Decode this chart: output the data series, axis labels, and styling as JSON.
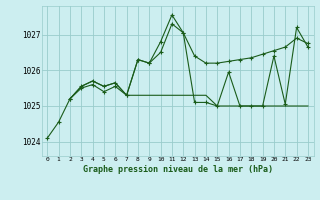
{
  "title": "Graphe pression niveau de la mer (hPa)",
  "background_color": "#cceef0",
  "grid_color": "#99cccc",
  "line_color": "#1a5c1a",
  "marker_color": "#1a5c1a",
  "xlim": [
    -0.5,
    23.5
  ],
  "ylim": [
    1023.6,
    1027.8
  ],
  "yticks": [
    1024,
    1025,
    1026,
    1027
  ],
  "xticks": [
    0,
    1,
    2,
    3,
    4,
    5,
    6,
    7,
    8,
    9,
    10,
    11,
    12,
    13,
    14,
    15,
    16,
    17,
    18,
    19,
    20,
    21,
    22,
    23
  ],
  "series1_x": [
    0,
    1,
    2,
    3,
    4,
    5,
    6,
    7,
    8,
    9,
    10,
    11,
    12,
    13,
    14,
    15,
    16,
    17,
    18,
    19,
    20,
    21,
    22,
    23
  ],
  "series1_y": [
    1024.1,
    1024.55,
    1025.2,
    1025.5,
    1025.6,
    1025.4,
    1025.55,
    1025.3,
    1026.3,
    1026.2,
    1026.5,
    1027.3,
    1027.05,
    1026.4,
    1026.2,
    1026.2,
    1026.25,
    1026.3,
    1026.35,
    1026.45,
    1026.55,
    1026.65,
    1026.9,
    1026.75
  ],
  "series2_x": [
    2,
    3,
    4,
    5,
    6,
    7,
    8,
    9,
    10,
    11,
    12,
    13,
    14,
    15,
    16,
    17,
    18,
    19,
    20,
    21,
    22,
    23
  ],
  "series2_y": [
    1025.2,
    1025.55,
    1025.7,
    1025.55,
    1025.65,
    1025.3,
    1026.3,
    1026.2,
    1026.8,
    1027.55,
    1027.05,
    1025.1,
    1025.1,
    1025.0,
    1025.95,
    1025.0,
    1025.0,
    1025.0,
    1026.4,
    1025.05,
    1027.2,
    1026.65
  ],
  "series3_x": [
    2,
    3,
    4,
    5,
    6,
    7,
    8,
    9,
    10,
    11,
    12,
    13,
    14,
    15,
    16,
    17,
    18,
    19,
    20,
    21,
    22,
    23
  ],
  "series3_y": [
    1025.2,
    1025.55,
    1025.7,
    1025.55,
    1025.65,
    1025.3,
    1025.3,
    1025.3,
    1025.3,
    1025.3,
    1025.3,
    1025.3,
    1025.3,
    1025.0,
    1025.0,
    1025.0,
    1025.0,
    1025.0,
    1025.0,
    1025.0,
    1025.0,
    1025.0
  ]
}
